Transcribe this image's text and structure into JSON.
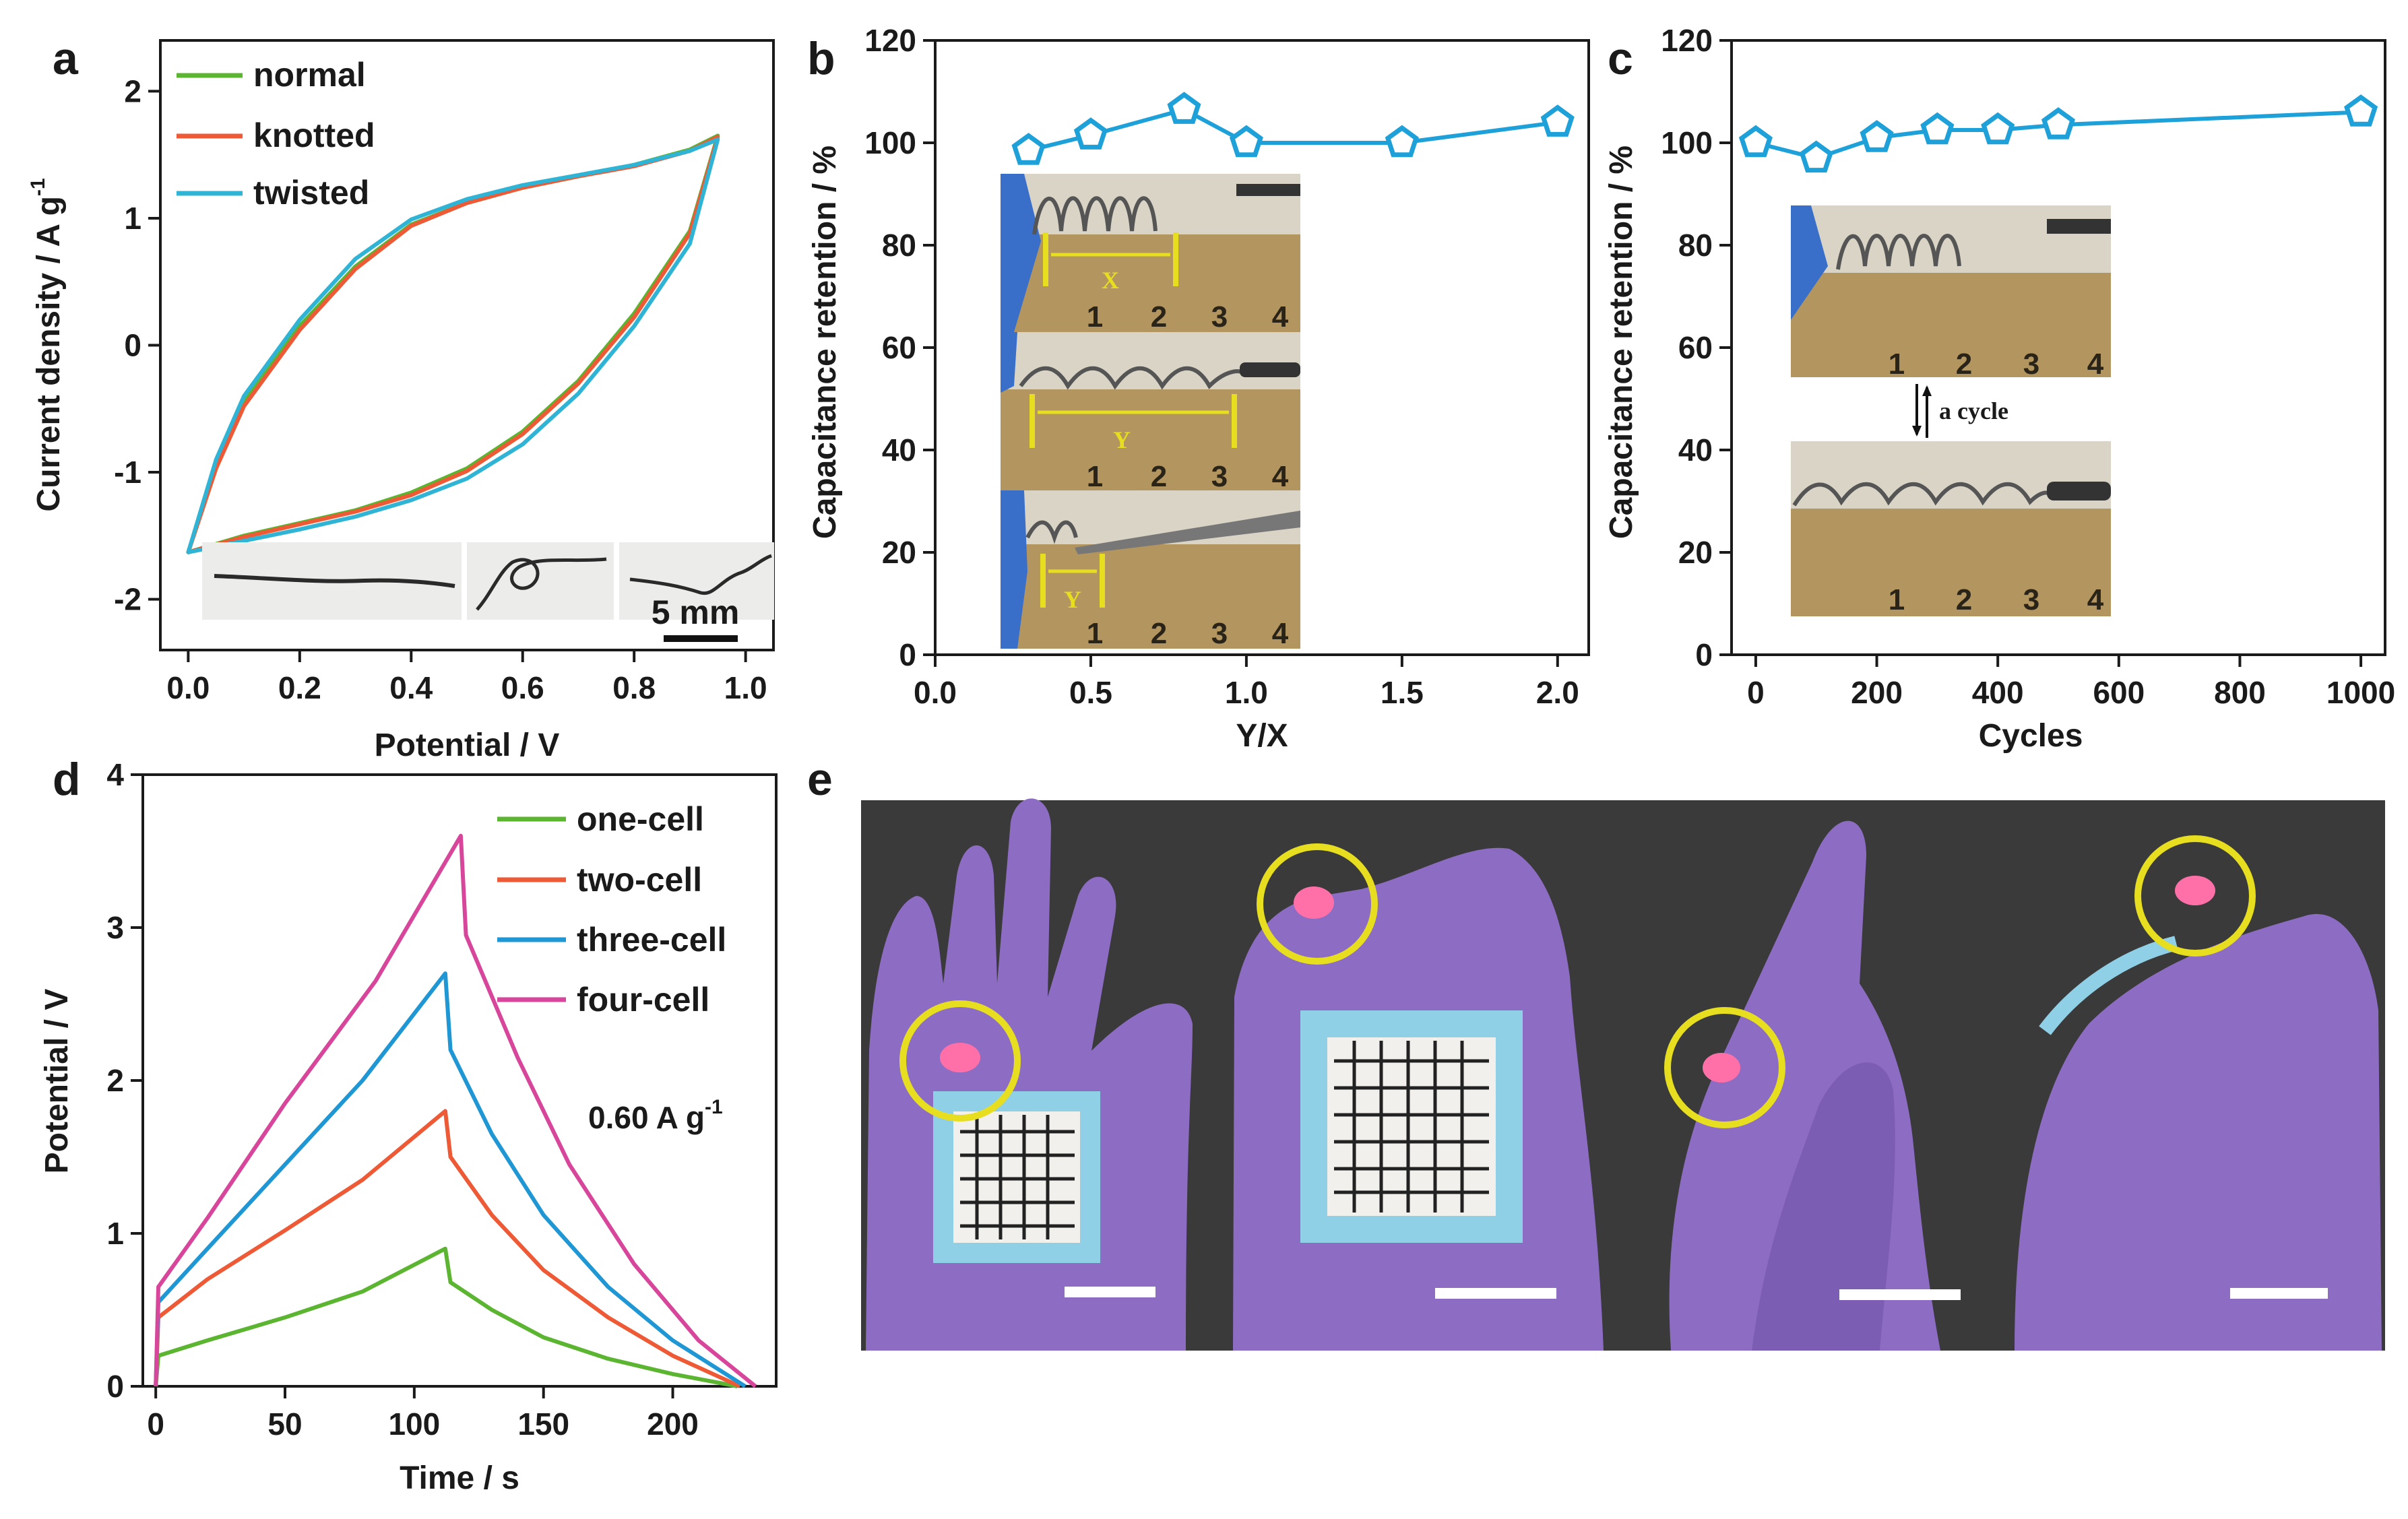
{
  "colors": {
    "green": "#5cb531",
    "red": "#ee5a36",
    "cyan": "#2fb4d6",
    "blue": "#1f97d4",
    "magenta": "#d8469c",
    "marker": "#1ea0d9",
    "glove": "#8d6dc3",
    "photo_bg": "#3a3a3a",
    "ruler": "#b39560",
    "yellow": "#e6de1f",
    "led": "#ff6fa8"
  },
  "chart_data": [
    {
      "panel": "a",
      "type": "line",
      "title": "",
      "xlabel": "Potential / V",
      "ylabel": "Current density / A g-1",
      "ylabel_main": "Current density / A g",
      "ylabel_sup": "-1",
      "xlim": [
        -0.05,
        1.05
      ],
      "ylim": [
        -2.4,
        2.4
      ],
      "xticks": [
        0.0,
        0.2,
        0.4,
        0.6,
        0.8,
        1.0
      ],
      "xtick_labels": [
        "0.0",
        "0.2",
        "0.4",
        "0.6",
        "0.8",
        "1.0"
      ],
      "yticks": [
        -2,
        -1,
        0,
        1,
        2
      ],
      "ytick_labels": [
        "-2",
        "-1",
        "0",
        "1",
        "2"
      ],
      "series": [
        {
          "name": "normal",
          "color": "#5cb531",
          "upper": [
            [
              0.0,
              -1.63
            ],
            [
              0.05,
              -0.95
            ],
            [
              0.1,
              -0.45
            ],
            [
              0.2,
              0.15
            ],
            [
              0.3,
              0.62
            ],
            [
              0.4,
              0.95
            ],
            [
              0.5,
              1.12
            ],
            [
              0.6,
              1.24
            ],
            [
              0.7,
              1.33
            ],
            [
              0.8,
              1.42
            ],
            [
              0.9,
              1.54
            ],
            [
              0.95,
              1.65
            ]
          ],
          "lower": [
            [
              0.95,
              1.6
            ],
            [
              0.9,
              0.9
            ],
            [
              0.8,
              0.25
            ],
            [
              0.7,
              -0.28
            ],
            [
              0.6,
              -0.68
            ],
            [
              0.5,
              -0.97
            ],
            [
              0.4,
              -1.16
            ],
            [
              0.3,
              -1.3
            ],
            [
              0.2,
              -1.4
            ],
            [
              0.1,
              -1.5
            ],
            [
              0.0,
              -1.63
            ]
          ]
        },
        {
          "name": "knotted",
          "color": "#ee5a36",
          "upper": [
            [
              0.0,
              -1.63
            ],
            [
              0.05,
              -0.97
            ],
            [
              0.1,
              -0.48
            ],
            [
              0.2,
              0.12
            ],
            [
              0.3,
              0.6
            ],
            [
              0.4,
              0.94
            ],
            [
              0.5,
              1.12
            ],
            [
              0.6,
              1.24
            ],
            [
              0.7,
              1.33
            ],
            [
              0.8,
              1.41
            ],
            [
              0.9,
              1.53
            ],
            [
              0.95,
              1.64
            ]
          ],
          "lower": [
            [
              0.95,
              1.58
            ],
            [
              0.9,
              0.88
            ],
            [
              0.8,
              0.22
            ],
            [
              0.7,
              -0.3
            ],
            [
              0.6,
              -0.7
            ],
            [
              0.5,
              -0.99
            ],
            [
              0.4,
              -1.18
            ],
            [
              0.3,
              -1.31
            ],
            [
              0.2,
              -1.41
            ],
            [
              0.1,
              -1.51
            ],
            [
              0.0,
              -1.63
            ]
          ]
        },
        {
          "name": "twisted",
          "color": "#2fb4d6",
          "upper": [
            [
              0.0,
              -1.63
            ],
            [
              0.05,
              -0.9
            ],
            [
              0.1,
              -0.4
            ],
            [
              0.2,
              0.2
            ],
            [
              0.3,
              0.68
            ],
            [
              0.4,
              0.99
            ],
            [
              0.5,
              1.15
            ],
            [
              0.6,
              1.26
            ],
            [
              0.7,
              1.34
            ],
            [
              0.8,
              1.42
            ],
            [
              0.9,
              1.53
            ],
            [
              0.95,
              1.62
            ]
          ],
          "lower": [
            [
              0.95,
              1.55
            ],
            [
              0.9,
              0.8
            ],
            [
              0.8,
              0.15
            ],
            [
              0.7,
              -0.38
            ],
            [
              0.6,
              -0.78
            ],
            [
              0.5,
              -1.05
            ],
            [
              0.4,
              -1.22
            ],
            [
              0.3,
              -1.35
            ],
            [
              0.2,
              -1.45
            ],
            [
              0.1,
              -1.54
            ],
            [
              0.0,
              -1.63
            ]
          ]
        }
      ],
      "inset_scale_label": "5 mm"
    },
    {
      "panel": "b",
      "type": "line",
      "xlabel": "Y/X",
      "ylabel": "Capacitance retention / %",
      "xlim": [
        0.0,
        2.1
      ],
      "ylim": [
        0,
        120
      ],
      "xticks": [
        0.0,
        0.5,
        1.0,
        1.5,
        2.0
      ],
      "xtick_labels": [
        "0.0",
        "0.5",
        "1.0",
        "1.5",
        "2.0"
      ],
      "yticks": [
        0,
        20,
        40,
        60,
        80,
        100,
        120
      ],
      "ytick_labels": [
        "0",
        "20",
        "40",
        "60",
        "80",
        "100",
        "120"
      ],
      "x": [
        0.3,
        0.5,
        0.8,
        1.0,
        1.5,
        2.0
      ],
      "values": [
        98.5,
        101.5,
        106.5,
        100,
        100,
        104
      ],
      "inset_labels": [
        "X",
        "Y",
        "Y"
      ],
      "ruler_numbers": [
        "1",
        "2",
        "3",
        "4"
      ]
    },
    {
      "panel": "c",
      "type": "line",
      "xlabel": "Cycles",
      "ylabel": "Capacitance retention / %",
      "xlim": [
        -40,
        1040
      ],
      "ylim": [
        0,
        120
      ],
      "xticks": [
        0,
        200,
        400,
        600,
        800,
        1000
      ],
      "xtick_labels": [
        "0",
        "200",
        "400",
        "600",
        "800",
        "1000"
      ],
      "yticks": [
        0,
        20,
        40,
        60,
        80,
        100,
        120
      ],
      "ytick_labels": [
        "0",
        "20",
        "40",
        "60",
        "80",
        "100",
        "120"
      ],
      "x": [
        0,
        100,
        200,
        300,
        400,
        500,
        1000
      ],
      "values": [
        100,
        97,
        101,
        102.5,
        102.5,
        103.5,
        106
      ],
      "cycle_label": "a cycle",
      "ruler_numbers": [
        "1",
        "2",
        "3",
        "4"
      ]
    },
    {
      "panel": "d",
      "type": "line",
      "xlabel": "Time / s",
      "ylabel": "Potential / V",
      "xlim": [
        -5,
        240
      ],
      "ylim": [
        0,
        4
      ],
      "xticks": [
        0,
        50,
        100,
        150,
        200
      ],
      "xtick_labels": [
        "0",
        "50",
        "100",
        "150",
        "200"
      ],
      "yticks": [
        0,
        1,
        2,
        3,
        4
      ],
      "ytick_labels": [
        "0",
        "1",
        "2",
        "3",
        "4"
      ],
      "annotation_main": "0.60 A g",
      "annotation_sup": "-1",
      "series": [
        {
          "name": "one-cell",
          "color": "#5cb531",
          "points": [
            [
              0,
              0
            ],
            [
              1,
              0.2
            ],
            [
              20,
              0.3
            ],
            [
              50,
              0.45
            ],
            [
              80,
              0.62
            ],
            [
              112,
              0.9
            ],
            [
              114,
              0.68
            ],
            [
              130,
              0.5
            ],
            [
              150,
              0.32
            ],
            [
              175,
              0.18
            ],
            [
              200,
              0.08
            ],
            [
              225,
              0.0
            ]
          ]
        },
        {
          "name": "two-cell",
          "color": "#ee5a36",
          "points": [
            [
              0,
              0
            ],
            [
              1,
              0.45
            ],
            [
              20,
              0.7
            ],
            [
              50,
              1.02
            ],
            [
              80,
              1.35
            ],
            [
              112,
              1.8
            ],
            [
              114,
              1.5
            ],
            [
              130,
              1.12
            ],
            [
              150,
              0.76
            ],
            [
              175,
              0.45
            ],
            [
              200,
              0.2
            ],
            [
              226,
              0.0
            ]
          ]
        },
        {
          "name": "three-cell",
          "color": "#1f97d4",
          "points": [
            [
              0,
              0
            ],
            [
              1,
              0.55
            ],
            [
              20,
              0.9
            ],
            [
              50,
              1.45
            ],
            [
              80,
              2.0
            ],
            [
              112,
              2.7
            ],
            [
              114,
              2.2
            ],
            [
              130,
              1.65
            ],
            [
              150,
              1.12
            ],
            [
              175,
              0.65
            ],
            [
              200,
              0.3
            ],
            [
              228,
              0.0
            ]
          ]
        },
        {
          "name": "four-cell",
          "color": "#d8469c",
          "points": [
            [
              0,
              0
            ],
            [
              1,
              0.65
            ],
            [
              20,
              1.1
            ],
            [
              50,
              1.85
            ],
            [
              85,
              2.65
            ],
            [
              118,
              3.6
            ],
            [
              120,
              2.95
            ],
            [
              140,
              2.15
            ],
            [
              160,
              1.45
            ],
            [
              185,
              0.8
            ],
            [
              210,
              0.3
            ],
            [
              232,
              0.0
            ]
          ]
        }
      ]
    }
  ]
}
